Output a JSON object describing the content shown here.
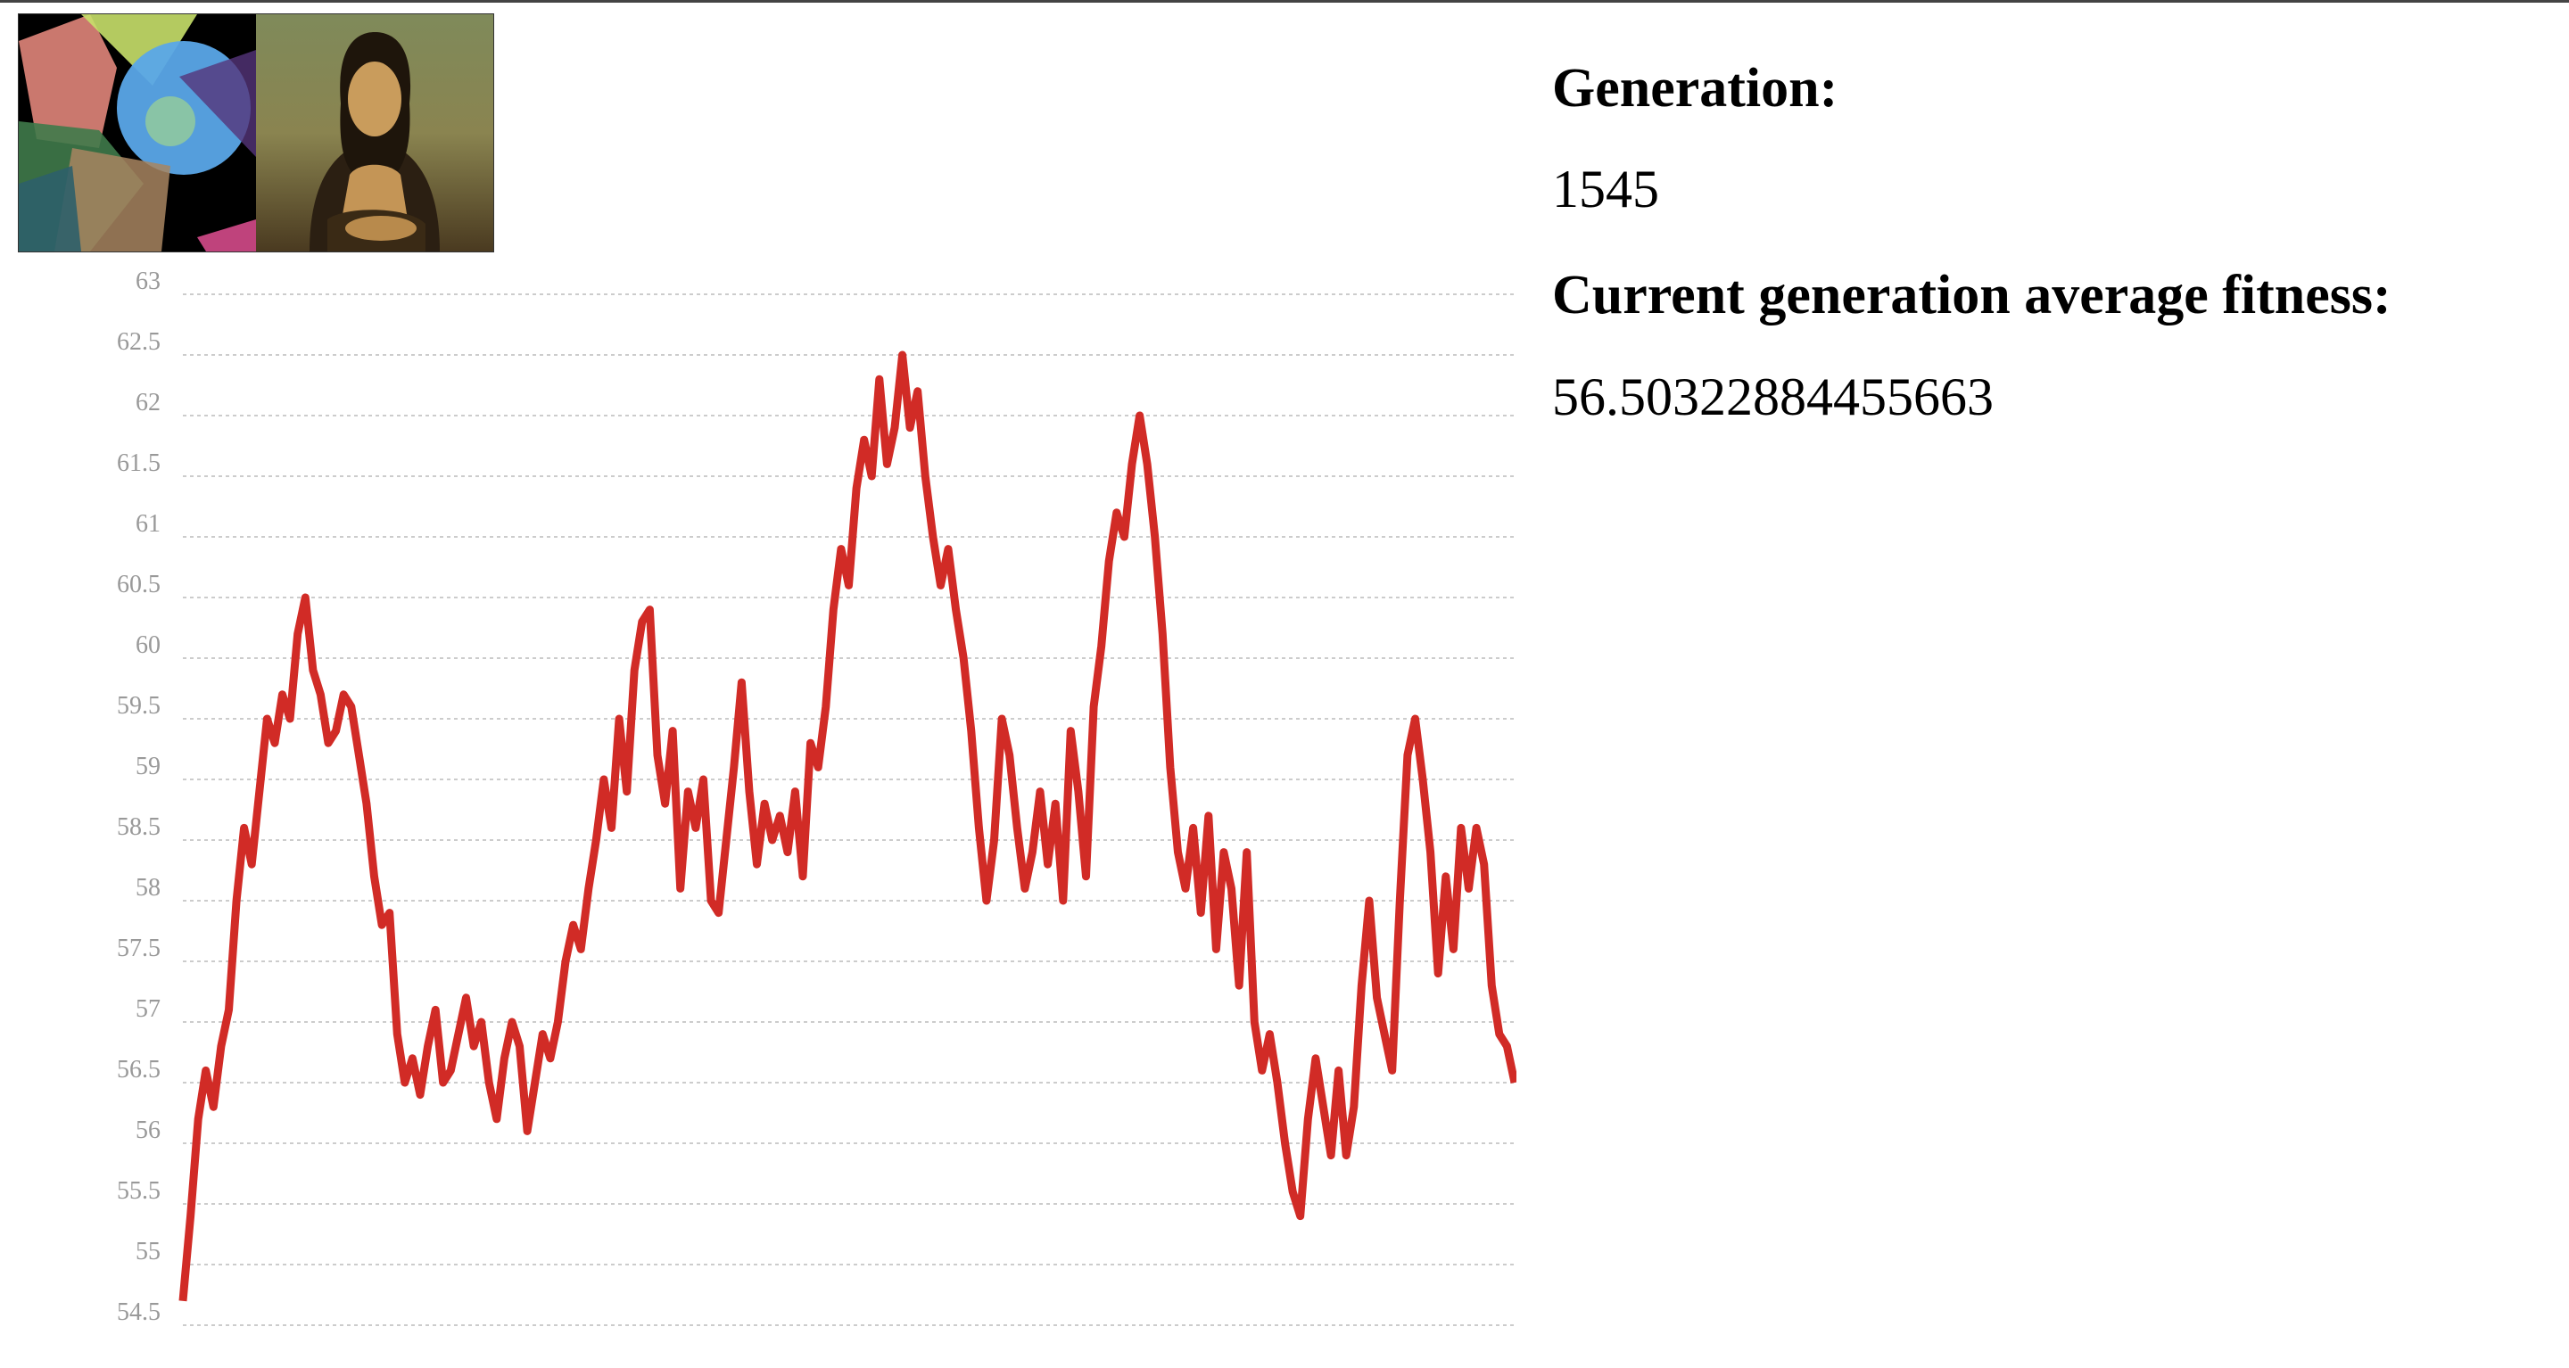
{
  "images": {
    "evolved": {
      "icon": "evolved-polygon-approximation-image"
    },
    "target": {
      "icon": "mona-lisa-target-image"
    }
  },
  "stats": {
    "generation_label": "Generation:",
    "generation_value": "1545",
    "fitness_label": "Current generation average fitness:",
    "fitness_value": "56.50322884455663"
  },
  "colors": {
    "line": "#d12b26",
    "grid": "#cccccc",
    "tick_text": "#999999"
  },
  "chart_data": {
    "type": "line",
    "title": "",
    "xlabel": "",
    "ylabel": "",
    "ylim": [
      54.5,
      63
    ],
    "yticks": [
      "63",
      "62.5",
      "62",
      "61.5",
      "61",
      "60.5",
      "60",
      "59.5",
      "59",
      "58.5",
      "58",
      "57.5",
      "57",
      "56.5",
      "56",
      "55.5",
      "55",
      "54.5"
    ],
    "grid": "horizontal-dashed",
    "series": [
      {
        "values": [
          54.7,
          55.4,
          56.2,
          56.6,
          56.3,
          56.8,
          57.1,
          58.0,
          58.6,
          58.3,
          58.9,
          59.5,
          59.3,
          59.7,
          59.5,
          60.2,
          60.5,
          59.9,
          59.7,
          59.3,
          59.4,
          59.7,
          59.6,
          59.2,
          58.8,
          58.2,
          57.8,
          57.9,
          56.9,
          56.5,
          56.7,
          56.4,
          56.8,
          57.1,
          56.5,
          56.6,
          56.9,
          57.2,
          56.8,
          57.0,
          56.5,
          56.2,
          56.7,
          57.0,
          56.8,
          56.1,
          56.5,
          56.9,
          56.7,
          57.0,
          57.5,
          57.8,
          57.6,
          58.1,
          58.5,
          59.0,
          58.6,
          59.5,
          58.9,
          59.9,
          60.3,
          60.4,
          59.2,
          58.8,
          59.4,
          58.1,
          58.9,
          58.6,
          59.0,
          58.0,
          57.9,
          58.5,
          59.1,
          59.8,
          58.9,
          58.3,
          58.8,
          58.5,
          58.7,
          58.4,
          58.9,
          58.2,
          59.3,
          59.1,
          59.6,
          60.4,
          60.9,
          60.6,
          61.4,
          61.8,
          61.5,
          62.3,
          61.6,
          61.9,
          62.5,
          61.9,
          62.2,
          61.5,
          61.0,
          60.6,
          60.9,
          60.4,
          60.0,
          59.4,
          58.6,
          58.0,
          58.5,
          59.5,
          59.2,
          58.6,
          58.1,
          58.4,
          58.9,
          58.3,
          58.8,
          58.0,
          59.4,
          58.9,
          58.2,
          59.6,
          60.1,
          60.8,
          61.2,
          61.0,
          61.6,
          62.0,
          61.6,
          61.0,
          60.2,
          59.1,
          58.4,
          58.1,
          58.6,
          57.9,
          58.7,
          57.6,
          58.4,
          58.1,
          57.3,
          58.4,
          57.0,
          56.6,
          56.9,
          56.5,
          56.0,
          55.6,
          55.4,
          56.2,
          56.7,
          56.3,
          55.9,
          56.6,
          55.9,
          56.3,
          57.3,
          58.0,
          57.2,
          56.9,
          56.6,
          58.0,
          59.2,
          59.5,
          59.0,
          58.4,
          57.4,
          58.2,
          57.6,
          58.6,
          58.1,
          58.6,
          58.3,
          57.3,
          56.9,
          56.8,
          56.5
        ]
      }
    ]
  }
}
